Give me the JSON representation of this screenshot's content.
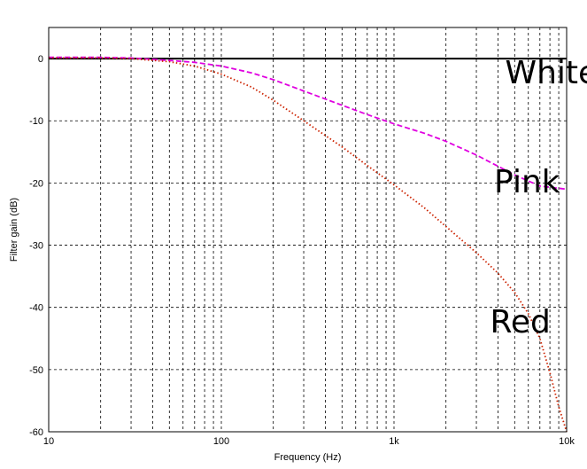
{
  "chart_data": {
    "type": "line",
    "xlabel": "Frequency (Hz)",
    "ylabel": "Filter gain (dB)",
    "x_scale": "log",
    "xlim": [
      10,
      10000
    ],
    "ylim": [
      -60,
      5
    ],
    "grid": true,
    "x_ticks": [
      10,
      100,
      1000,
      10000
    ],
    "x_tick_labels": [
      "10",
      "100",
      "1k",
      "10k"
    ],
    "y_ticks": [
      0,
      -10,
      -20,
      -30,
      -40,
      -50,
      -60
    ],
    "y_tick_labels": [
      "0",
      "-10",
      "-20",
      "-30",
      "-40",
      "-50",
      "-60"
    ],
    "series": [
      {
        "name": "White",
        "color": "#000000",
        "style": "solid",
        "x": [
          10,
          100,
          1000,
          10000
        ],
        "y": [
          0,
          0,
          0,
          0
        ]
      },
      {
        "name": "Pink",
        "color": "#e000e0",
        "style": "dashed",
        "x": [
          10,
          20,
          30,
          50,
          70,
          100,
          150,
          200,
          300,
          500,
          700,
          1000,
          1500,
          2000,
          3000,
          5000,
          7000,
          10000
        ],
        "y": [
          0.2,
          0.2,
          0.1,
          -0.3,
          -0.6,
          -1.2,
          -2.3,
          -3.4,
          -5.2,
          -7.5,
          -9.0,
          -10.5,
          -12.0,
          -13.3,
          -15.5,
          -18.7,
          -20.5,
          -21.0
        ]
      },
      {
        "name": "Red",
        "color": "#cc2200",
        "style": "dotted",
        "x": [
          10,
          20,
          30,
          50,
          70,
          100,
          150,
          200,
          300,
          500,
          700,
          1000,
          1500,
          2000,
          3000,
          4000,
          5000,
          6000,
          7000,
          8000,
          9000,
          10000
        ],
        "y": [
          0.1,
          0.1,
          0,
          -0.5,
          -1.2,
          -2.5,
          -4.6,
          -6.7,
          -10.0,
          -14.2,
          -17.2,
          -20.3,
          -24.0,
          -27.0,
          -31.2,
          -34.5,
          -37.6,
          -41.0,
          -45.0,
          -50.5,
          -56.0,
          -60.0
        ]
      }
    ],
    "annotations": [
      {
        "text": "White",
        "x": 4400,
        "y": -4
      },
      {
        "text": "Pink",
        "x": 3800,
        "y": -21.5
      },
      {
        "text": "Red",
        "x": 3600,
        "y": -44
      }
    ]
  }
}
